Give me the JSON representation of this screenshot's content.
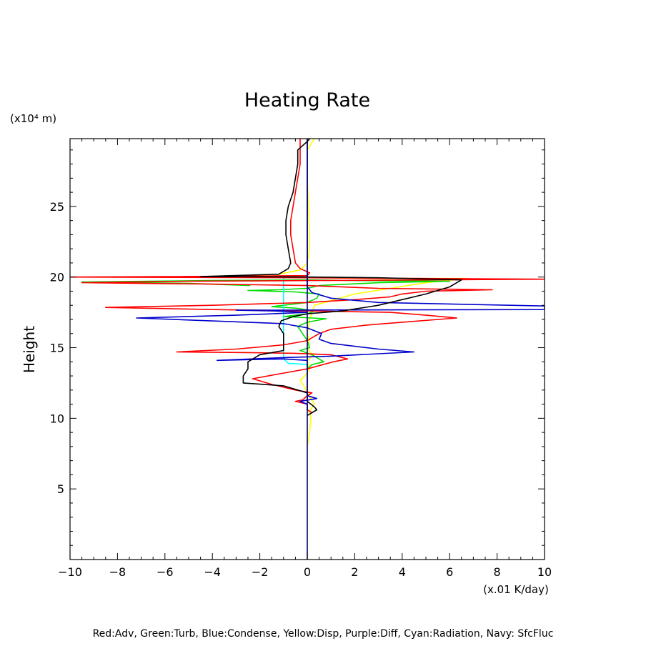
{
  "chart_data": {
    "type": "line",
    "title": "Heating Rate",
    "xlabel": "",
    "x_unit_label": "(x.01 K/day)",
    "ylabel": "Height",
    "y_unit_label": "(x10⁴ m)",
    "xlim": [
      -10,
      10
    ],
    "ylim": [
      0,
      29.8
    ],
    "x_ticks": [
      -10,
      -8,
      -6,
      -4,
      -2,
      0,
      2,
      4,
      6,
      8,
      10
    ],
    "x_tick_labels": [
      "−10",
      "−8",
      "−6",
      "−4",
      "−2",
      "0",
      "2",
      "4",
      "6",
      "8",
      "10"
    ],
    "y_ticks": [
      5,
      10,
      15,
      20,
      25
    ],
    "y_tick_labels": [
      "5",
      "10",
      "15",
      "20",
      "25"
    ],
    "grid": false,
    "legend_note": "Red:Adv, Green:Turb, Blue:Condense, Yellow:Disp, Purple:Diff, Cyan:Radiation, Navy: SfcFluc",
    "series": [
      {
        "color": "#ffff00",
        "points": [
          [
            0,
            8
          ],
          [
            0.1,
            9
          ],
          [
            0.15,
            10
          ],
          [
            0.1,
            10.5
          ],
          [
            0.3,
            11
          ],
          [
            0,
            11.8
          ],
          [
            -0.1,
            12.2
          ],
          [
            -0.3,
            12.7
          ],
          [
            -0.1,
            13
          ],
          [
            0.1,
            13.5
          ],
          [
            0,
            14
          ],
          [
            0.2,
            14.5
          ],
          [
            0,
            15
          ],
          [
            0.1,
            15.5
          ],
          [
            0,
            16
          ],
          [
            0.1,
            17
          ],
          [
            0.3,
            18
          ],
          [
            2,
            18.8
          ],
          [
            3.5,
            19.2
          ],
          [
            5,
            19.6
          ],
          [
            6.7,
            19.9
          ],
          [
            3,
            19.9
          ],
          [
            0.5,
            19.95
          ],
          [
            -1.5,
            20
          ],
          [
            -2.4,
            20.1
          ],
          [
            -1.2,
            20.2
          ],
          [
            -0.3,
            20.5
          ],
          [
            0,
            21
          ],
          [
            0.1,
            22
          ],
          [
            0.1,
            23
          ],
          [
            0.05,
            25
          ],
          [
            0,
            27
          ],
          [
            0,
            29
          ],
          [
            0.3,
            29.8
          ]
        ]
      },
      {
        "color": "#00dd00",
        "points": [
          [
            -2.4,
            19.4
          ],
          [
            -5,
            19.55
          ],
          [
            -9.5,
            19.65
          ],
          [
            -4,
            19.75
          ],
          [
            0,
            19.8
          ],
          [
            2,
            19.75
          ],
          [
            6,
            19.7
          ],
          [
            3,
            19.6
          ],
          [
            0.5,
            19.4
          ],
          [
            0,
            19.2
          ],
          [
            -1.2,
            19.1
          ],
          [
            -2.5,
            19.05
          ],
          [
            -0.5,
            18.95
          ],
          [
            0.5,
            18.8
          ],
          [
            0.4,
            18.5
          ],
          [
            0,
            18.2
          ],
          [
            -1,
            18
          ],
          [
            -1.5,
            17.9
          ],
          [
            -0.5,
            17.8
          ],
          [
            0.3,
            17.6
          ],
          [
            0,
            17.4
          ],
          [
            -1,
            17.2
          ],
          [
            0.8,
            17.05
          ],
          [
            0,
            16.8
          ],
          [
            -0.4,
            16.5
          ],
          [
            -0.2,
            16
          ],
          [
            0,
            15.5
          ],
          [
            0.1,
            15
          ],
          [
            -0.3,
            14.8
          ],
          [
            0.2,
            14.5
          ],
          [
            0.7,
            14
          ],
          [
            0.2,
            13.8
          ],
          [
            0,
            13.5
          ]
        ]
      },
      {
        "color": "#00ffff",
        "points": [
          [
            0,
            20.4
          ],
          [
            0,
            20.1
          ],
          [
            -1,
            20.05
          ],
          [
            -1,
            19.7
          ],
          [
            -1,
            19
          ],
          [
            -1,
            18
          ],
          [
            -1,
            17
          ],
          [
            -1,
            16
          ],
          [
            -1,
            15
          ],
          [
            -1,
            14.2
          ],
          [
            -0.8,
            13.9
          ],
          [
            0,
            13.8
          ]
        ]
      },
      {
        "color": "#ff0000",
        "points": [
          [
            0.2,
            10.4
          ],
          [
            0,
            10.6
          ],
          [
            0,
            11
          ],
          [
            -0.5,
            11.2
          ],
          [
            -0.2,
            11.3
          ],
          [
            0,
            11.6
          ],
          [
            0.2,
            11.8
          ],
          [
            -0.5,
            12
          ],
          [
            -1.5,
            12.4
          ],
          [
            -2.3,
            12.8
          ],
          [
            -1,
            13.2
          ],
          [
            0,
            13.5
          ],
          [
            1.1,
            14
          ],
          [
            1.7,
            14.2
          ],
          [
            1,
            14.5
          ],
          [
            -0.5,
            14.6
          ],
          [
            -2.5,
            14.65
          ],
          [
            -5.5,
            14.7
          ],
          [
            -3,
            14.9
          ],
          [
            -1,
            15.2
          ],
          [
            0,
            15.5
          ],
          [
            0.5,
            16
          ],
          [
            1,
            16.3
          ],
          [
            2.5,
            16.6
          ],
          [
            4,
            16.8
          ],
          [
            6.3,
            17.1
          ],
          [
            5,
            17.3
          ],
          [
            3.5,
            17.5
          ],
          [
            0,
            17.6
          ],
          [
            -4,
            17.7
          ],
          [
            -8.5,
            17.85
          ],
          [
            -4,
            18
          ],
          [
            0,
            18.2
          ],
          [
            2,
            18.4
          ],
          [
            3.5,
            18.6
          ],
          [
            4,
            18.8
          ],
          [
            5,
            19
          ],
          [
            7.8,
            19.1
          ],
          [
            3,
            19.2
          ],
          [
            0,
            19.4
          ],
          [
            -4,
            19.5
          ],
          [
            -9.5,
            19.6
          ],
          [
            -5,
            19.7
          ],
          [
            0,
            19.75
          ],
          [
            5,
            19.8
          ],
          [
            10,
            19.85
          ],
          [
            5,
            19.9
          ],
          [
            0,
            19.95
          ],
          [
            -10,
            20
          ],
          [
            -4,
            20.05
          ],
          [
            0,
            20.1
          ],
          [
            0.1,
            20.3
          ],
          [
            -0.3,
            20.6
          ],
          [
            -0.5,
            21
          ],
          [
            -0.6,
            22
          ],
          [
            -0.7,
            23
          ],
          [
            -0.7,
            24
          ],
          [
            -0.6,
            25
          ],
          [
            -0.5,
            26
          ],
          [
            -0.4,
            27
          ],
          [
            -0.3,
            28
          ],
          [
            -0.3,
            29
          ],
          [
            -0.3,
            29.8
          ]
        ]
      },
      {
        "color": "#0000cc",
        "points": [
          [
            0,
            10.6
          ],
          [
            0,
            11
          ],
          [
            -0.3,
            11.2
          ],
          [
            0.4,
            11.4
          ],
          [
            0,
            11.6
          ],
          [
            0,
            12
          ],
          [
            0,
            13
          ],
          [
            0,
            13.5
          ],
          [
            0,
            14.1
          ],
          [
            -1,
            14.2
          ],
          [
            -3.8,
            14.1
          ],
          [
            -1,
            14.3
          ],
          [
            1,
            14.4
          ],
          [
            4.5,
            14.7
          ],
          [
            3,
            14.9
          ],
          [
            1,
            15.3
          ],
          [
            0.5,
            15.6
          ],
          [
            0.6,
            16
          ],
          [
            0,
            16.4
          ],
          [
            -1,
            16.7
          ],
          [
            -7.2,
            17.1
          ],
          [
            -3,
            17.3
          ],
          [
            0,
            17.5
          ],
          [
            -1.5,
            17.6
          ],
          [
            -3,
            17.65
          ],
          [
            10,
            17.7
          ],
          [
            10,
            17.95
          ],
          [
            3,
            18.2
          ],
          [
            1,
            18.5
          ],
          [
            0.2,
            18.9
          ],
          [
            0,
            19.3
          ],
          [
            0,
            19.6
          ],
          [
            0,
            20
          ],
          [
            0,
            22
          ],
          [
            0,
            25
          ],
          [
            0,
            29.8
          ]
        ]
      },
      {
        "color": "#000000",
        "points": [
          [
            0,
            10.2
          ],
          [
            0.4,
            10.6
          ],
          [
            0.3,
            10.8
          ],
          [
            0,
            11.2
          ],
          [
            0,
            11.8
          ],
          [
            -1,
            12.3
          ],
          [
            -2.7,
            12.5
          ],
          [
            -2.7,
            13
          ],
          [
            -2.5,
            13.5
          ],
          [
            -2.5,
            14
          ],
          [
            -2,
            14.5
          ],
          [
            -1,
            14.8
          ],
          [
            -1,
            15.5
          ],
          [
            -1,
            16
          ],
          [
            -1.2,
            16.5
          ],
          [
            -1.1,
            16.9
          ],
          [
            -0.6,
            17.2
          ],
          [
            0,
            17.4
          ],
          [
            1.5,
            17.6
          ],
          [
            3,
            18
          ],
          [
            4,
            18.4
          ],
          [
            5,
            18.8
          ],
          [
            6,
            19.3
          ],
          [
            6.5,
            19.8
          ],
          [
            3,
            19.95
          ],
          [
            0.2,
            20
          ],
          [
            -2,
            20.02
          ],
          [
            -4.5,
            20.03
          ],
          [
            -1.2,
            20.2
          ],
          [
            -0.8,
            20.6
          ],
          [
            -0.7,
            21
          ],
          [
            -0.8,
            22
          ],
          [
            -0.9,
            23
          ],
          [
            -0.9,
            24
          ],
          [
            -0.8,
            25
          ],
          [
            -0.6,
            26
          ],
          [
            -0.5,
            27
          ],
          [
            -0.4,
            28
          ],
          [
            -0.4,
            29
          ],
          [
            0,
            29.6
          ],
          [
            0.1,
            29.8
          ]
        ]
      },
      {
        "color": "#00006e",
        "points": [
          [
            0,
            0
          ],
          [
            0,
            5
          ],
          [
            0,
            10
          ],
          [
            0,
            15
          ],
          [
            0,
            20
          ],
          [
            0,
            25
          ],
          [
            0,
            29.8
          ]
        ]
      }
    ]
  }
}
